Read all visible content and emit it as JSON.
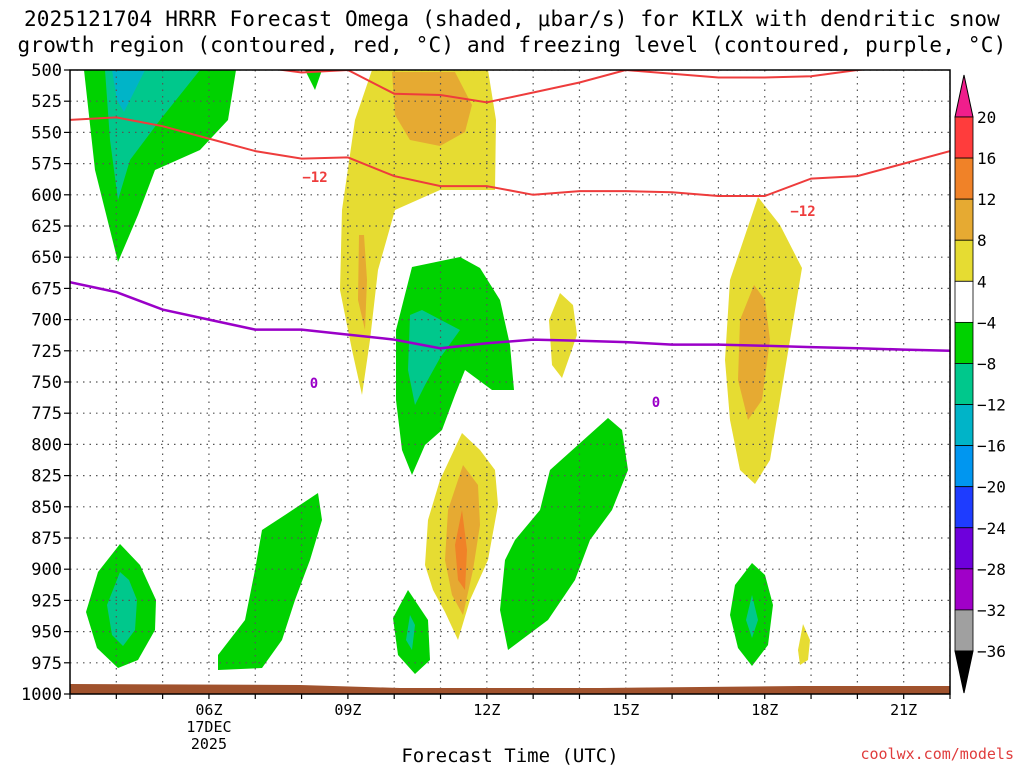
{
  "chart_data": {
    "type": "contour",
    "title_line1": "2025121704 HRRR Forecast Omega (shaded, μbar/s) for KILX with dendritic snow",
    "title_line2": "growth region (contoured, red, °C) and freezing level (contoured, purple, °C)",
    "xlabel": "Forecast Time (UTC)",
    "ylabel": "",
    "y_axis_ticks": [
      "500",
      "525",
      "550",
      "575",
      "600",
      "625",
      "650",
      "675",
      "700",
      "725",
      "750",
      "775",
      "800",
      "825",
      "850",
      "875",
      "900",
      "925",
      "950",
      "975",
      "1000"
    ],
    "ylim": [
      1000,
      500
    ],
    "xlim": [
      3,
      22
    ],
    "x_axis_ticks": [
      {
        "hour": 6,
        "label": "06Z",
        "sublabels": [
          "17DEC",
          "2025"
        ]
      },
      {
        "hour": 9,
        "label": "09Z"
      },
      {
        "hour": 12,
        "label": "12Z"
      },
      {
        "hour": 15,
        "label": "15Z"
      },
      {
        "hour": 18,
        "label": "18Z"
      },
      {
        "hour": 21,
        "label": "21Z"
      }
    ],
    "colorbar": {
      "levels": [
        "20",
        "16",
        "12",
        "8",
        "4",
        "−4",
        "−8",
        "−12",
        "−16",
        "−20",
        "−24",
        "−28",
        "−32",
        "−36"
      ],
      "colors": [
        "#ff3c3c",
        "#f08228",
        "#e6aa32",
        "#e6dc32",
        "#ffffff",
        "#00d200",
        "#00c88c",
        "#00b4c8",
        "#0096f0",
        "#1e3cff",
        "#6e00dc",
        "#a000c8",
        "#a0a0a0"
      ],
      "top_color": "#f01e8c",
      "bottom_color": "#000000"
    },
    "contour_labels": {
      "dgz_label_1": "−12",
      "dgz_label_2": "−12",
      "frz_label_1": "0",
      "frz_label_2": "0"
    },
    "dgz_top_line": [
      [
        3,
        540
      ],
      [
        4,
        538
      ],
      [
        5,
        545
      ],
      [
        6,
        555
      ],
      [
        7,
        565
      ],
      [
        8,
        571
      ],
      [
        9,
        570
      ],
      [
        10,
        585
      ],
      [
        11,
        593
      ],
      [
        12,
        593
      ],
      [
        13,
        600
      ],
      [
        14,
        597
      ],
      [
        15,
        597
      ],
      [
        16,
        598
      ],
      [
        17,
        601
      ],
      [
        18,
        601
      ],
      [
        19,
        587
      ],
      [
        20,
        585
      ],
      [
        21,
        575
      ],
      [
        22,
        565
      ]
    ],
    "dgz_upper_line": [
      [
        6,
        493
      ],
      [
        7,
        497
      ],
      [
        8,
        502
      ],
      [
        9,
        500
      ],
      [
        10,
        519
      ],
      [
        11,
        520
      ],
      [
        12,
        526
      ],
      [
        13,
        518
      ],
      [
        14,
        510
      ],
      [
        15,
        500
      ],
      [
        16,
        503
      ],
      [
        17,
        506
      ],
      [
        18,
        506
      ],
      [
        19,
        505
      ],
      [
        20,
        500
      ],
      [
        21,
        497
      ],
      [
        22,
        492
      ]
    ],
    "freezing_line": [
      [
        3,
        670
      ],
      [
        4,
        678
      ],
      [
        5,
        692
      ],
      [
        6,
        700
      ],
      [
        7,
        708
      ],
      [
        8,
        708
      ],
      [
        9,
        712
      ],
      [
        10,
        716
      ],
      [
        11,
        723
      ],
      [
        12,
        719
      ],
      [
        13,
        716
      ],
      [
        14,
        717
      ],
      [
        15,
        718
      ],
      [
        16,
        720
      ],
      [
        17,
        720
      ],
      [
        18,
        721
      ],
      [
        19,
        722
      ],
      [
        20,
        723
      ],
      [
        21,
        724
      ],
      [
        22,
        725
      ]
    ],
    "credit": "coolwx.com/models"
  }
}
